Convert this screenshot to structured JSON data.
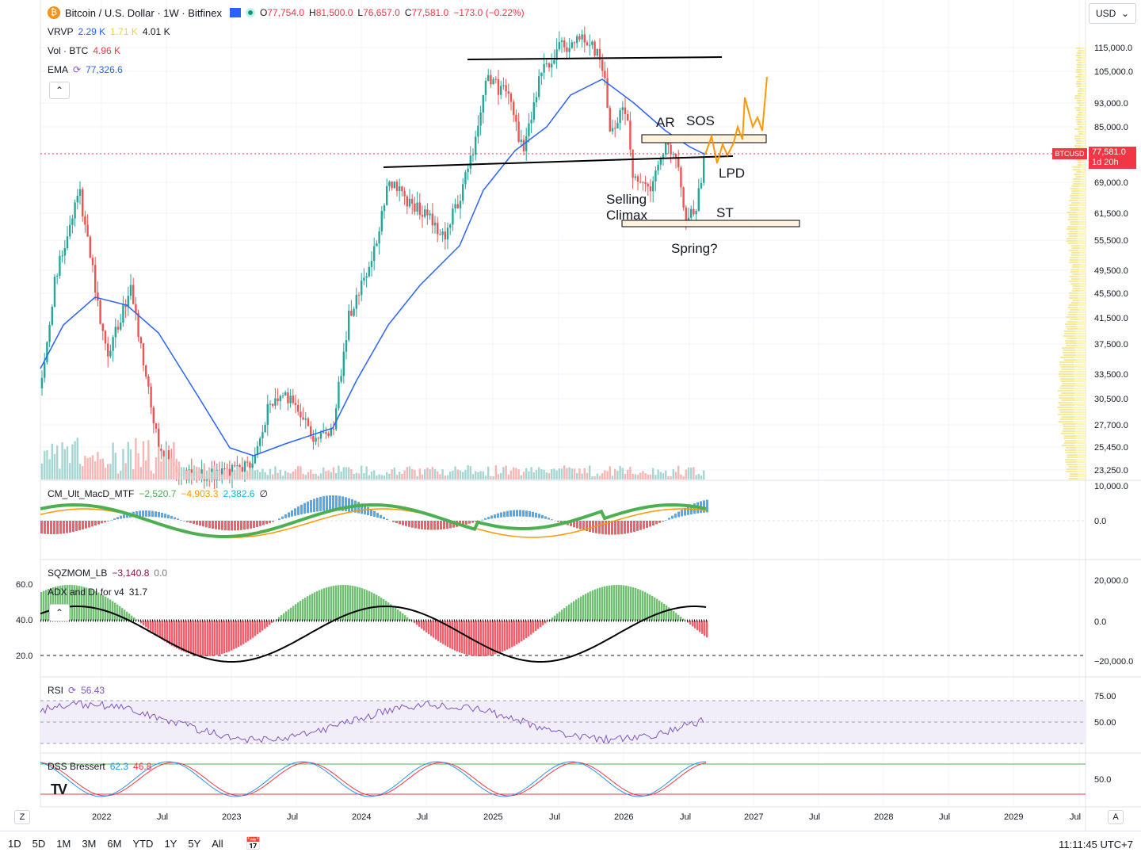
{
  "header": {
    "symbol_title": "Bitcoin / U.S. Dollar · 1W · Bitfinex",
    "ohlc": {
      "o_label": "O",
      "o": "77,754.0",
      "h_label": "H",
      "h": "81,500.0",
      "l_label": "L",
      "l": "76,657.0",
      "c_label": "C",
      "c": "77,581.0",
      "change": "−173.0 (−0.22%)"
    },
    "vrvp": {
      "label": "VRVP",
      "v1": "2.29 K",
      "v2": "1.71 K",
      "v3": "4.01 K"
    },
    "vol": {
      "label": "Vol · BTC",
      "value": "4.96 K"
    },
    "ema": {
      "label": "EMA",
      "value": "77,326.6"
    }
  },
  "currency": "USD",
  "last_price": {
    "symbol": "BTCUSD",
    "price": "77,581.0",
    "countdown": "1d 20h"
  },
  "annotations": [
    "AR",
    "SOS",
    "LPD",
    "Selling",
    "Climax",
    "ST",
    "Spring?"
  ],
  "price_axis": [
    "115,000.0",
    "105,000.0",
    "93,000.0",
    "85,000.0",
    "69,000.0",
    "61,500.0",
    "55,500.0",
    "49,500.0",
    "45,500.0",
    "41,500.0",
    "37,500.0",
    "33,500.0",
    "30,500.0",
    "27,700.0",
    "25,450.0",
    "23,250.0"
  ],
  "time_axis": [
    "2022",
    "Jul",
    "2023",
    "Jul",
    "2024",
    "Jul",
    "2025",
    "Jul",
    "2026",
    "Jul",
    "2027",
    "Jul",
    "2028",
    "Jul",
    "2029",
    "Jul"
  ],
  "macd": {
    "label": "CM_Ult_MacD_MTF",
    "v1": "−2,520.7",
    "v2": "−4,903.3",
    "v3": "2,382.6",
    "icon": "∅",
    "axis": [
      "10,000.0",
      "0.0"
    ]
  },
  "sqz": {
    "label": "SQZMOM_LB",
    "v1": "−3,140.8",
    "v2": "0.0",
    "axis_right": [
      "20,000.0",
      "0.0",
      "−20,000.0"
    ],
    "axis_left": [
      "60.0",
      "40.0",
      "20.0"
    ]
  },
  "adx": {
    "label": "ADX and DI for v4",
    "value": "31.7"
  },
  "rsi": {
    "label": "RSI",
    "value": "56.43",
    "axis": [
      "75.00",
      "50.00"
    ]
  },
  "dss": {
    "label": "DSS Bressert",
    "v1": "62.3",
    "v2": "46.8",
    "axis": [
      "50.0"
    ]
  },
  "bottom": {
    "ranges": [
      "1D",
      "5D",
      "1M",
      "3M",
      "6M",
      "YTD",
      "1Y",
      "5Y",
      "All"
    ],
    "clock": "11:11:45 UTC+7"
  },
  "corner": {
    "left": "Z",
    "right": "A"
  },
  "colors": {
    "up": "#26a69a",
    "down": "#ef5350",
    "ema": "#2962ff",
    "forecast": "#ff9800"
  }
}
